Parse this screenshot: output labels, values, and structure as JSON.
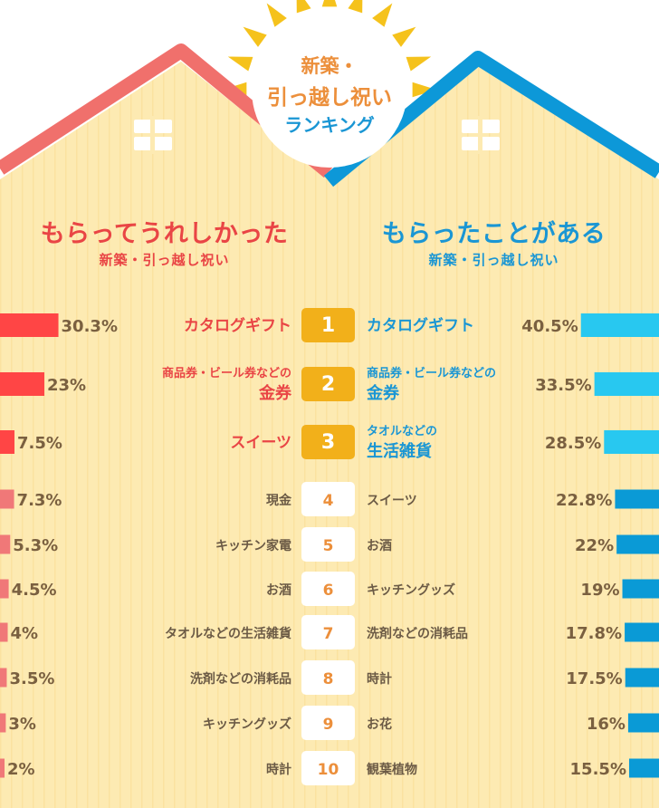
{
  "title": {
    "line1": "新築・",
    "line2": "引っ越し祝い",
    "line3": "ランキング"
  },
  "left_header": {
    "main": "もらってうれしかった",
    "sub": "新築・引っ越し祝い"
  },
  "right_header": {
    "main": "もらったことがある",
    "sub": "新築・引っ越し祝い"
  },
  "colors": {
    "left_roof": "#f0706c",
    "right_roof": "#0d98d8",
    "house_body": "#fdeab2",
    "house_stripe": "#fbe2a0",
    "sun": "#f5c21c",
    "left_top_bar": "#ff4545",
    "left_other_bar": "#f07878",
    "right_top_bar": "#28c8f0",
    "right_other_bar": "#0a9ad6",
    "rank_gold": "#f2b01a",
    "rank_number_other": "#ec8f3b",
    "label_red": "#e94545",
    "label_blue": "#1a96d4",
    "label_gray": "#6b5a45",
    "value_text": "#7a6040"
  },
  "chart_data": [
    {
      "type": "bar",
      "title": "もらってうれしかった",
      "subtitle": "新築・引っ越し祝い",
      "orientation": "horizontal",
      "ranks": [
        "1",
        "2",
        "3",
        "4",
        "5",
        "6",
        "7",
        "8",
        "9",
        "10"
      ],
      "categories": [
        "カタログギフト",
        "商品券・ビール券などの金券",
        "スイーツ",
        "現金",
        "キッチン家電",
        "お酒",
        "タオルなどの生活雑貨",
        "洗剤などの消耗品",
        "キッチングッズ",
        "時計"
      ],
      "label_lines": [
        [
          "カタログギフト"
        ],
        [
          "商品券・ビール券などの",
          "金券"
        ],
        [
          "スイーツ"
        ],
        [
          "現金"
        ],
        [
          "キッチン家電"
        ],
        [
          "お酒"
        ],
        [
          "タオルなどの生活雑貨"
        ],
        [
          "洗剤などの消耗品"
        ],
        [
          "キッチングッズ"
        ],
        [
          "時計"
        ]
      ],
      "values": [
        30.3,
        23,
        7.5,
        7.3,
        5.3,
        4.5,
        4,
        3.5,
        3,
        2
      ],
      "value_labels": [
        "30.3%",
        "23%",
        "7.5%",
        "7.3%",
        "5.3%",
        "4.5%",
        "4%",
        "3.5%",
        "3%",
        "2%"
      ],
      "unit": "%"
    },
    {
      "type": "bar",
      "title": "もらったことがある",
      "subtitle": "新築・引っ越し祝い",
      "orientation": "horizontal",
      "ranks": [
        "1",
        "2",
        "3",
        "4",
        "5",
        "6",
        "7",
        "8",
        "9",
        "10"
      ],
      "categories": [
        "カタログギフト",
        "商品券・ビール券などの金券",
        "タオルなどの生活雑貨",
        "スイーツ",
        "お酒",
        "キッチングッズ",
        "洗剤などの消耗品",
        "時計",
        "お花",
        "観葉植物"
      ],
      "label_lines": [
        [
          "カタログギフト"
        ],
        [
          "商品券・ビール券などの",
          "金券"
        ],
        [
          "タオルなどの",
          "生活雑貨"
        ],
        [
          "スイーツ"
        ],
        [
          "お酒"
        ],
        [
          "キッチングッズ"
        ],
        [
          "洗剤などの消耗品"
        ],
        [
          "時計"
        ],
        [
          "お花"
        ],
        [
          "観葉植物"
        ]
      ],
      "values": [
        40.5,
        33.5,
        28.5,
        22.8,
        22,
        19,
        17.8,
        17.5,
        16,
        15.5
      ],
      "value_labels": [
        "40.5%",
        "33.5%",
        "28.5%",
        "22.8%",
        "22%",
        "19%",
        "17.8%",
        "17.5%",
        "16%",
        "15.5%"
      ],
      "unit": "%"
    }
  ]
}
